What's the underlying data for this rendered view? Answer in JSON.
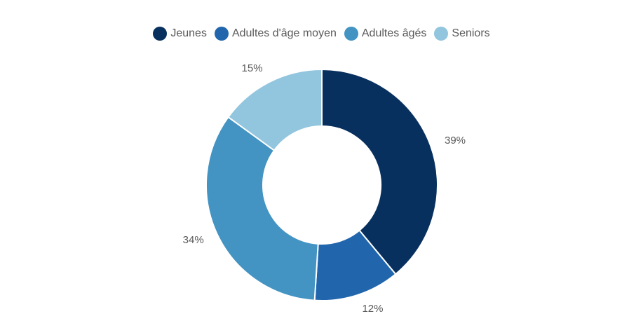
{
  "chart_data": {
    "type": "pie",
    "donut": true,
    "legend_position": "top-center",
    "categories": [
      "Jeunes",
      "Adultes d'âge moyen",
      "Adultes âgés",
      "Seniors"
    ],
    "values": [
      39,
      12,
      34,
      15
    ],
    "labels": [
      "39%",
      "12%",
      "34%",
      "15%"
    ],
    "colors": [
      "#08305e",
      "#2166ac",
      "#4393c3",
      "#92c5de"
    ]
  }
}
